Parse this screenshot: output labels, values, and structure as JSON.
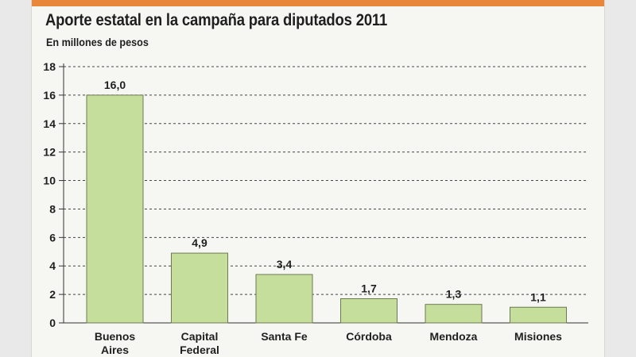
{
  "chart_data": {
    "type": "bar",
    "title": "Aporte estatal en la campaña para diputados 2011",
    "subtitle": "En millones de pesos",
    "categories": [
      [
        "Buenos",
        "Aires"
      ],
      [
        "Capital",
        "Federal"
      ],
      [
        "Santa Fe"
      ],
      [
        "Córdoba"
      ],
      [
        "Mendoza"
      ],
      [
        "Misiones"
      ]
    ],
    "values": [
      16.0,
      4.9,
      3.4,
      1.7,
      1.3,
      1.1
    ],
    "value_labels": [
      "16,0",
      "4,9",
      "3,4",
      "1,7",
      "1,3",
      "1,1"
    ],
    "ylim": [
      0,
      18
    ],
    "yticks": [
      0,
      2,
      4,
      6,
      8,
      10,
      12,
      14,
      16,
      18
    ],
    "grid": true,
    "bar_color": "#c5de9c",
    "bar_border": "#6d7b52",
    "accent_color": "#e8873a"
  }
}
